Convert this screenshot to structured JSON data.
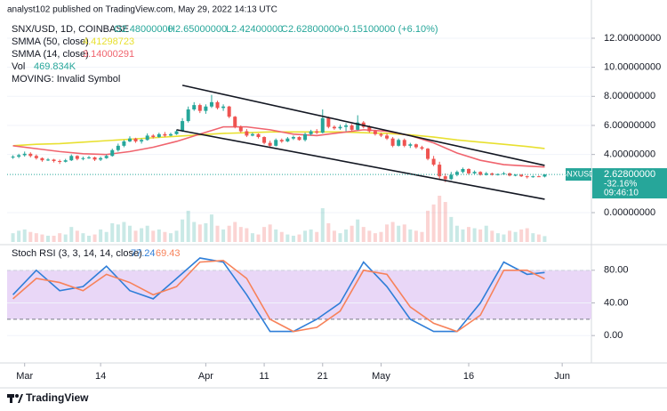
{
  "header": {
    "publisher": "analyst102 published on TradingView.com, May 29, 2022 14:13 UTC"
  },
  "footer": {
    "brand": "TradingView"
  },
  "chart_data": [
    {
      "type": "candlestick",
      "ohlc": {
        "name": "SNX/USD, 1D, COINBASE",
        "up_color": "#26a69a",
        "down_color": "#ef5350",
        "labels": [
          "O2.48000000",
          "H2.65000000",
          "L2.42400000",
          "C2.62800000",
          "+0.15100000 (+6.10%)"
        ],
        "x": [
          "2022-02-27",
          "2022-02-28",
          "2022-03-01",
          "2022-03-02",
          "2022-03-03",
          "2022-03-04",
          "2022-03-05",
          "2022-03-06",
          "2022-03-07",
          "2022-03-08",
          "2022-03-09",
          "2022-03-10",
          "2022-03-11",
          "2022-03-12",
          "2022-03-13",
          "2022-03-14",
          "2022-03-15",
          "2022-03-16",
          "2022-03-17",
          "2022-03-18",
          "2022-03-19",
          "2022-03-20",
          "2022-03-21",
          "2022-03-22",
          "2022-03-23",
          "2022-03-24",
          "2022-03-25",
          "2022-03-26",
          "2022-03-27",
          "2022-03-28",
          "2022-03-29",
          "2022-03-30",
          "2022-03-31",
          "2022-04-01",
          "2022-04-02",
          "2022-04-03",
          "2022-04-04",
          "2022-04-05",
          "2022-04-06",
          "2022-04-07",
          "2022-04-08",
          "2022-04-09",
          "2022-04-10",
          "2022-04-11",
          "2022-04-12",
          "2022-04-13",
          "2022-04-14",
          "2022-04-15",
          "2022-04-16",
          "2022-04-17",
          "2022-04-18",
          "2022-04-19",
          "2022-04-20",
          "2022-04-21",
          "2022-04-22",
          "2022-04-23",
          "2022-04-24",
          "2022-04-25",
          "2022-04-26",
          "2022-04-27",
          "2022-04-28",
          "2022-04-29",
          "2022-04-30",
          "2022-05-01",
          "2022-05-02",
          "2022-05-03",
          "2022-05-04",
          "2022-05-05",
          "2022-05-06",
          "2022-05-07",
          "2022-05-08",
          "2022-05-09",
          "2022-05-10",
          "2022-05-11",
          "2022-05-12",
          "2022-05-13",
          "2022-05-14",
          "2022-05-15",
          "2022-05-16",
          "2022-05-17",
          "2022-05-18",
          "2022-05-19",
          "2022-05-20",
          "2022-05-21",
          "2022-05-22",
          "2022-05-23",
          "2022-05-24",
          "2022-05-25",
          "2022-05-26",
          "2022-05-27",
          "2022-05-28",
          "2022-05-29"
        ],
        "values": [
          [
            3.8,
            3.95,
            3.7,
            3.85
          ],
          [
            3.85,
            4.05,
            3.75,
            3.95
          ],
          [
            3.95,
            4.2,
            3.85,
            4.05
          ],
          [
            4.05,
            4.15,
            3.8,
            3.9
          ],
          [
            3.9,
            4.0,
            3.65,
            3.75
          ],
          [
            3.75,
            3.8,
            3.5,
            3.6
          ],
          [
            3.6,
            3.75,
            3.55,
            3.65
          ],
          [
            3.65,
            3.7,
            3.45,
            3.55
          ],
          [
            3.55,
            3.65,
            3.35,
            3.5
          ],
          [
            3.5,
            3.7,
            3.45,
            3.6
          ],
          [
            3.6,
            4.0,
            3.55,
            3.9
          ],
          [
            3.9,
            3.95,
            3.6,
            3.7
          ],
          [
            3.7,
            3.85,
            3.6,
            3.75
          ],
          [
            3.75,
            3.9,
            3.7,
            3.8
          ],
          [
            3.8,
            3.85,
            3.55,
            3.65
          ],
          [
            3.65,
            3.85,
            3.55,
            3.75
          ],
          [
            3.75,
            4.0,
            3.7,
            3.9
          ],
          [
            3.9,
            4.4,
            3.85,
            4.3
          ],
          [
            4.3,
            4.75,
            4.2,
            4.6
          ],
          [
            4.6,
            5.0,
            4.5,
            4.9
          ],
          [
            4.9,
            5.25,
            4.85,
            5.1
          ],
          [
            5.1,
            5.15,
            4.8,
            4.9
          ],
          [
            4.9,
            5.1,
            4.75,
            5.0
          ],
          [
            5.0,
            5.45,
            4.95,
            5.3
          ],
          [
            5.3,
            5.4,
            5.1,
            5.2
          ],
          [
            5.2,
            5.5,
            5.15,
            5.4
          ],
          [
            5.4,
            5.55,
            5.2,
            5.3
          ],
          [
            5.3,
            5.5,
            5.25,
            5.4
          ],
          [
            5.4,
            5.7,
            5.35,
            5.6
          ],
          [
            5.6,
            6.5,
            5.55,
            6.3
          ],
          [
            6.3,
            7.3,
            6.2,
            7.1
          ],
          [
            7.1,
            7.6,
            7.0,
            7.4
          ],
          [
            7.4,
            7.5,
            6.85,
            7.0
          ],
          [
            7.0,
            7.45,
            6.8,
            7.3
          ],
          [
            7.3,
            8.1,
            7.2,
            7.6
          ],
          [
            7.6,
            7.7,
            7.1,
            7.2
          ],
          [
            7.2,
            7.45,
            7.0,
            7.3
          ],
          [
            7.3,
            7.35,
            6.5,
            6.6
          ],
          [
            6.6,
            6.65,
            5.8,
            5.9
          ],
          [
            5.9,
            6.0,
            5.5,
            5.6
          ],
          [
            5.6,
            5.75,
            5.2,
            5.3
          ],
          [
            5.3,
            5.5,
            5.25,
            5.4
          ],
          [
            5.4,
            5.45,
            5.1,
            5.2
          ],
          [
            5.2,
            5.25,
            4.7,
            4.8
          ],
          [
            4.8,
            4.95,
            4.5,
            4.6
          ],
          [
            4.6,
            5.1,
            4.55,
            5.0
          ],
          [
            5.0,
            5.1,
            4.8,
            4.9
          ],
          [
            4.9,
            5.2,
            4.85,
            5.1
          ],
          [
            5.1,
            5.3,
            5.0,
            5.2
          ],
          [
            5.2,
            5.25,
            4.95,
            5.0
          ],
          [
            5.0,
            5.5,
            4.9,
            5.4
          ],
          [
            5.4,
            5.7,
            5.3,
            5.6
          ],
          [
            5.6,
            5.75,
            5.4,
            5.5
          ],
          [
            5.5,
            7.1,
            5.45,
            6.5
          ],
          [
            6.5,
            6.6,
            5.8,
            5.9
          ],
          [
            5.9,
            6.0,
            5.7,
            5.8
          ],
          [
            5.8,
            6.05,
            5.7,
            5.9
          ],
          [
            5.9,
            6.15,
            5.6,
            6.0
          ],
          [
            6.0,
            6.1,
            5.6,
            5.7
          ],
          [
            5.7,
            6.7,
            5.65,
            6.2
          ],
          [
            6.2,
            6.3,
            5.8,
            5.9
          ],
          [
            5.9,
            6.0,
            5.5,
            5.6
          ],
          [
            5.6,
            5.7,
            5.3,
            5.4
          ],
          [
            5.4,
            5.5,
            5.2,
            5.3
          ],
          [
            5.3,
            5.45,
            5.0,
            5.1
          ],
          [
            5.1,
            5.2,
            4.5,
            4.6
          ],
          [
            4.6,
            5.1,
            4.55,
            5.0
          ],
          [
            5.0,
            5.1,
            4.5,
            4.6
          ],
          [
            4.6,
            4.8,
            4.45,
            4.7
          ],
          [
            4.7,
            4.75,
            4.4,
            4.5
          ],
          [
            4.5,
            4.6,
            4.3,
            4.4
          ],
          [
            4.4,
            4.45,
            3.6,
            3.7
          ],
          [
            3.7,
            3.9,
            3.2,
            3.3
          ],
          [
            3.3,
            3.5,
            2.3,
            2.5
          ],
          [
            2.5,
            2.7,
            2.1,
            2.3
          ],
          [
            2.3,
            2.8,
            2.25,
            2.6
          ],
          [
            2.6,
            2.9,
            2.5,
            2.8
          ],
          [
            2.8,
            3.1,
            2.7,
            3.0
          ],
          [
            3.0,
            3.05,
            2.6,
            2.7
          ],
          [
            2.7,
            2.9,
            2.65,
            2.8
          ],
          [
            2.8,
            2.85,
            2.55,
            2.6
          ],
          [
            2.6,
            2.8,
            2.55,
            2.7
          ],
          [
            2.7,
            2.75,
            2.55,
            2.6
          ],
          [
            2.6,
            2.7,
            2.55,
            2.65
          ],
          [
            2.65,
            2.8,
            2.6,
            2.7
          ],
          [
            2.7,
            2.75,
            2.5,
            2.55
          ],
          [
            2.55,
            2.65,
            2.5,
            2.6
          ],
          [
            2.6,
            2.65,
            2.45,
            2.5
          ],
          [
            2.5,
            2.55,
            2.35,
            2.45
          ],
          [
            2.45,
            2.55,
            2.4,
            2.5
          ],
          [
            2.5,
            2.55,
            2.45,
            2.48
          ],
          [
            2.48,
            2.65,
            2.424,
            2.628
          ]
        ]
      },
      "volume": {
        "name": "Vol",
        "value_label": "469.834K",
        "values": [
          700000,
          900000,
          1000000,
          800000,
          700000,
          600000,
          500000,
          500000,
          700000,
          600000,
          1200000,
          900000,
          700000,
          500000,
          600000,
          1000000,
          800000,
          1500000,
          1400000,
          1600000,
          1300000,
          900000,
          1100000,
          1300000,
          900000,
          1000000,
          800000,
          700000,
          900000,
          1800000,
          2500000,
          1600000,
          1400000,
          1500000,
          2200000,
          1300000,
          1000000,
          1300000,
          1600000,
          1200000,
          1100000,
          700000,
          600000,
          1200000,
          1400000,
          1000000,
          800000,
          600000,
          500000,
          600000,
          900000,
          1000000,
          800000,
          2700000,
          1500000,
          900000,
          700000,
          1000000,
          1300000,
          1800000,
          1200000,
          900000,
          700000,
          800000,
          1400000,
          1600000,
          1300000,
          1400000,
          1000000,
          900000,
          800000,
          2500000,
          3000000,
          3700000,
          3200000,
          2000000,
          1300000,
          1000000,
          1200000,
          1100000,
          1000000,
          1300000,
          900000,
          700000,
          600000,
          900000,
          800000,
          1000000,
          1100000,
          700000,
          600000,
          469834
        ]
      },
      "line_x": [
        "2022-02-27",
        "2022-03-03",
        "2022-03-07",
        "2022-03-11",
        "2022-03-15",
        "2022-03-19",
        "2022-03-23",
        "2022-03-27",
        "2022-03-31",
        "2022-04-04",
        "2022-04-08",
        "2022-04-12",
        "2022-04-16",
        "2022-04-20",
        "2022-04-24",
        "2022-04-28",
        "2022-05-02",
        "2022-05-06",
        "2022-05-10",
        "2022-05-14",
        "2022-05-18",
        "2022-05-22",
        "2022-05-26",
        "2022-05-29"
      ],
      "series": [
        {
          "name": "SMMA (50, close)",
          "color": "#e8e030",
          "last_label": "4.41298723",
          "values": [
            4.6,
            4.7,
            4.75,
            4.85,
            4.95,
            5.05,
            5.15,
            5.25,
            5.35,
            5.45,
            5.5,
            5.55,
            5.55,
            5.55,
            5.55,
            5.5,
            5.45,
            5.35,
            5.2,
            5.0,
            4.85,
            4.7,
            4.55,
            4.41298723
          ]
        },
        {
          "name": "SMMA (14, close)",
          "color": "#f0646e",
          "last_label": "3.14000291",
          "values": [
            4.6,
            4.4,
            4.2,
            4.05,
            4.0,
            4.2,
            4.5,
            4.9,
            5.4,
            5.9,
            5.9,
            5.7,
            5.4,
            5.3,
            5.5,
            5.7,
            5.6,
            5.3,
            4.8,
            4.1,
            3.6,
            3.3,
            3.2,
            3.14000291
          ]
        }
      ],
      "note": "MOVING: Invalid Symbol",
      "trendlines": [
        {
          "color": "#131722",
          "x": [
            "2022-03-28",
            "2022-05-29"
          ],
          "values": [
            8.76,
            3.25
          ]
        },
        {
          "color": "#131722",
          "x": [
            "2022-03-27",
            "2022-05-29"
          ],
          "values": [
            5.7,
            0.92
          ]
        }
      ],
      "last_price": {
        "symbol": "SNXUSD",
        "price": "2.62800000",
        "change": "-32.16%",
        "countdown": "09:46:10",
        "color": "#26a69a"
      },
      "xlim": [
        "2022-02-26",
        "2022-06-06"
      ],
      "ylim": [
        -2.02,
        14.63
      ],
      "yticks": [
        {
          "value": 12,
          "label": "12.00000000"
        },
        {
          "value": 10,
          "label": "10.00000000"
        },
        {
          "value": 8,
          "label": "8.00000000"
        },
        {
          "value": 6,
          "label": "6.00000000"
        },
        {
          "value": 4,
          "label": "4.00000000"
        },
        {
          "value": 0,
          "label": "0.00000000"
        }
      ]
    },
    {
      "type": "line",
      "title": "Stoch RSI (3, 3, 14, 14, close)",
      "x": [
        "2022-02-27",
        "2022-03-03",
        "2022-03-07",
        "2022-03-11",
        "2022-03-15",
        "2022-03-19",
        "2022-03-23",
        "2022-03-27",
        "2022-03-31",
        "2022-04-04",
        "2022-04-08",
        "2022-04-12",
        "2022-04-16",
        "2022-04-20",
        "2022-04-24",
        "2022-04-28",
        "2022-05-02",
        "2022-05-06",
        "2022-05-10",
        "2022-05-14",
        "2022-05-18",
        "2022-05-22",
        "2022-05-26",
        "2022-05-29"
      ],
      "series": [
        {
          "name": "K",
          "color": "#2f7ed8",
          "last_label": "77.24",
          "values": [
            50,
            80,
            55,
            60,
            85,
            55,
            45,
            70,
            95,
            90,
            50,
            5,
            5,
            20,
            40,
            90,
            60,
            20,
            5,
            5,
            40,
            90,
            75,
            77.24
          ]
        },
        {
          "name": "D",
          "color": "#f7825a",
          "last_label": "69.43",
          "values": [
            45,
            70,
            65,
            55,
            75,
            65,
            50,
            60,
            90,
            92,
            70,
            20,
            5,
            10,
            30,
            80,
            75,
            35,
            15,
            5,
            25,
            80,
            80,
            69.43
          ]
        }
      ],
      "band": [
        20,
        80
      ],
      "band_color": "#e3cdf5",
      "xlim": [
        "2022-02-26",
        "2022-06-06"
      ],
      "ylim": [
        -30.3,
        110.3
      ],
      "yticks": [
        {
          "value": 80,
          "label": "80.00"
        },
        {
          "value": 40,
          "label": "40.00"
        },
        {
          "value": 0,
          "label": "0.00"
        }
      ],
      "xticks": [
        {
          "value": "2022-03-01",
          "label": "Mar"
        },
        {
          "value": "2022-03-14",
          "label": "14"
        },
        {
          "value": "2022-04-01",
          "label": "Apr"
        },
        {
          "value": "2022-04-11",
          "label": "11"
        },
        {
          "value": "2022-04-21",
          "label": "21"
        },
        {
          "value": "2022-05-01",
          "label": "May"
        },
        {
          "value": "2022-05-16",
          "label": "16"
        },
        {
          "value": "2022-06-01",
          "label": "Jun"
        }
      ]
    }
  ]
}
